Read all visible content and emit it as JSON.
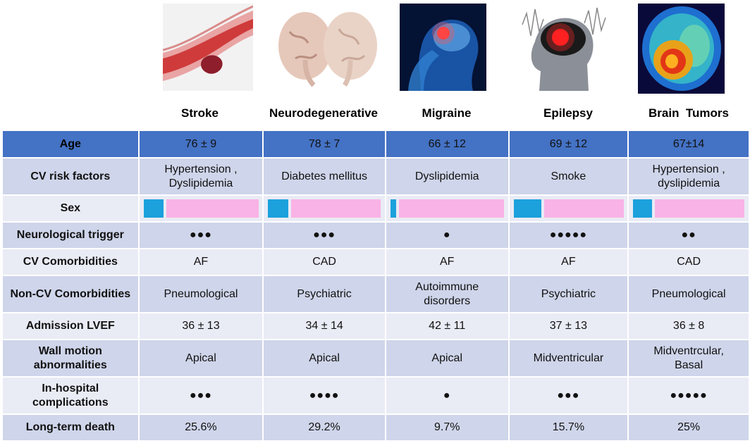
{
  "columns": [
    "Stroke",
    "Neurodegenerative",
    "Migraine",
    "Epilepsy",
    "Brain  Tumors"
  ],
  "image_icons": [
    "artery-clot-icon",
    "brain-halves-icon",
    "migraine-head-icon",
    "epilepsy-head-icon",
    "brain-scan-icon"
  ],
  "rows": [
    {
      "label": "Age",
      "values": [
        "76 ± 9",
        "78 ± 7",
        "66 ± 12",
        "69 ± 12",
        "67±14"
      ]
    },
    {
      "label": "CV risk factors",
      "values": [
        "Hypertension ,\nDyslipidemia",
        "Diabetes mellitus",
        "Dyslipidemia",
        "Smoke",
        "Hypertension ,\ndyslipidemia"
      ]
    },
    {
      "label": "Sex",
      "male_fraction": [
        0.17,
        0.18,
        0.05,
        0.25,
        0.17
      ],
      "colors": {
        "male": "#1ca1dc",
        "female": "#f9b3e6"
      }
    },
    {
      "label": "Neurological trigger",
      "values": [
        "●●●",
        "●●●",
        "●",
        "●●●●●",
        "●●"
      ]
    },
    {
      "label": "CV Comorbidities",
      "values": [
        "AF",
        "CAD",
        "AF",
        "AF",
        "CAD"
      ]
    },
    {
      "label": "Non-CV Comorbidities",
      "values": [
        "Pneumological",
        "Psychiatric",
        "Autoimmune\ndisorders",
        "Psychiatric",
        "Pneumological"
      ]
    },
    {
      "label": "Admission LVEF",
      "values": [
        "36 ± 13",
        "34 ± 14",
        "42 ± 11",
        "37 ± 13",
        "36 ± 8"
      ]
    },
    {
      "label": "Wall motion\nabnormalities",
      "values": [
        "Apical",
        "Apical",
        "Apical",
        "Midventricular",
        "Midventrcular,\nBasal"
      ]
    },
    {
      "label": "In-hospital\ncomplications",
      "values": [
        "●●●",
        "●●●●",
        "●",
        "●●●",
        "●●●●●"
      ]
    },
    {
      "label": "Long-term death",
      "values": [
        "25.6%",
        "29.2%",
        "9.7%",
        "15.7%",
        "25%"
      ]
    }
  ],
  "colors": {
    "header_row": "#4472c4",
    "row_dark": "#cfd5ea",
    "row_light": "#e9ebf5"
  }
}
